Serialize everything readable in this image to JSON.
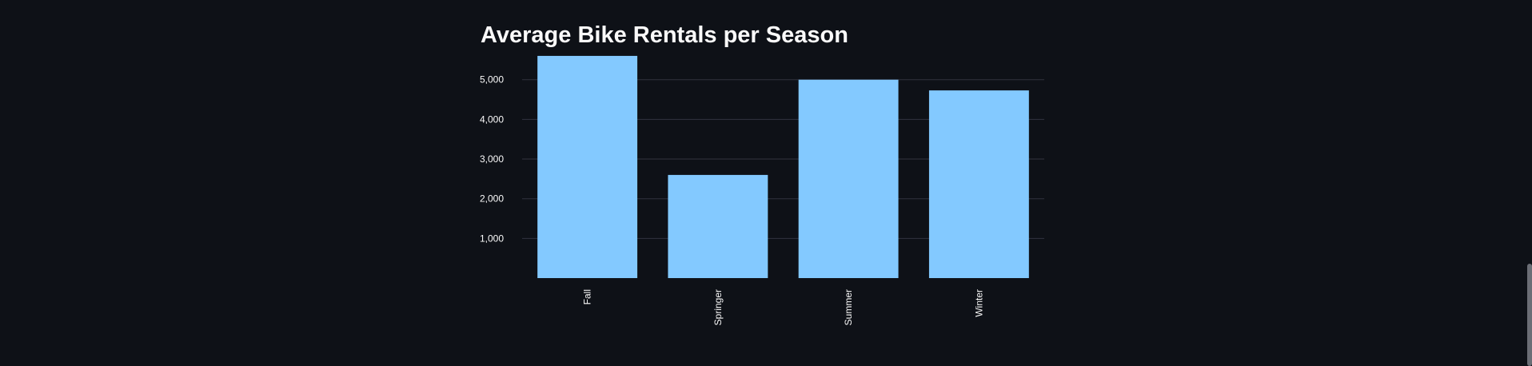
{
  "chart_data": {
    "type": "bar",
    "title": "Average Bike Rentals per Season",
    "xlabel": "",
    "ylabel": "",
    "categories": [
      "Fall",
      "Springer",
      "Summer",
      "Winter"
    ],
    "values": [
      5600,
      2600,
      5000,
      4730
    ],
    "ylim": [
      0,
      5800
    ],
    "yticks": [
      1000,
      2000,
      3000,
      4000,
      5000
    ],
    "ytick_labels": [
      "1,000",
      "2,000",
      "3,000",
      "4,000",
      "5,000"
    ],
    "grid": true,
    "bar_color": "#83c9ff"
  },
  "theme": {
    "background": "#0e1117",
    "text_color": "#fafafa",
    "grid_color": "#31333f"
  }
}
